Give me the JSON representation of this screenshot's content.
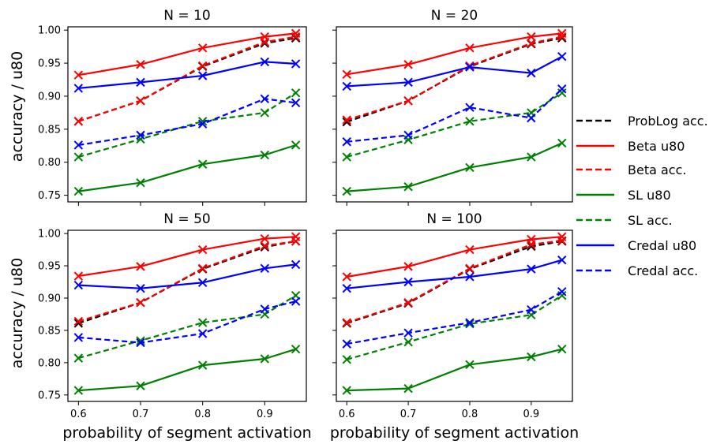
{
  "figure": {
    "ylabel": "accuracy / u80",
    "xlabel": "probability of segment activation"
  },
  "legend": [
    {
      "name": "ProbLog acc.",
      "color": "#000000",
      "dash": true
    },
    {
      "name": "Beta u80",
      "color": "#ff0000",
      "dash": false
    },
    {
      "name": "Beta acc.",
      "color": "#ff0000",
      "dash": true
    },
    {
      "name": "SL u80",
      "color": "#008000",
      "dash": false
    },
    {
      "name": "SL acc.",
      "color": "#008000",
      "dash": true
    },
    {
      "name": "Credal u80",
      "color": "#0000ff",
      "dash": false
    },
    {
      "name": "Credal acc.",
      "color": "#0000ff",
      "dash": true
    }
  ],
  "chart_data": [
    {
      "type": "line",
      "title": "N = 10",
      "x": [
        0.6,
        0.7,
        0.8,
        0.9,
        0.95
      ],
      "xticks": [
        "0.6",
        "0.7",
        "0.8",
        "0.9"
      ],
      "yticks": [
        "0.75",
        "0.80",
        "0.85",
        "0.90",
        "0.95",
        "1.00"
      ],
      "ylim": [
        0.74,
        1.005
      ],
      "series": [
        {
          "name": "ProbLog acc.",
          "values": [
            0.862,
            0.893,
            0.945,
            0.98,
            0.988
          ]
        },
        {
          "name": "Beta acc.",
          "values": [
            0.862,
            0.893,
            0.946,
            0.982,
            0.99
          ]
        },
        {
          "name": "Beta u80",
          "values": [
            0.932,
            0.948,
            0.973,
            0.99,
            0.995
          ]
        },
        {
          "name": "SL acc.",
          "values": [
            0.808,
            0.835,
            0.862,
            0.875,
            0.905
          ]
        },
        {
          "name": "SL u80",
          "values": [
            0.756,
            0.769,
            0.797,
            0.811,
            0.826
          ]
        },
        {
          "name": "Credal acc.",
          "values": [
            0.826,
            0.841,
            0.858,
            0.896,
            0.89
          ]
        },
        {
          "name": "Credal u80",
          "values": [
            0.912,
            0.921,
            0.931,
            0.952,
            0.949
          ]
        }
      ]
    },
    {
      "type": "line",
      "title": "N = 20",
      "x": [
        0.6,
        0.7,
        0.8,
        0.9,
        0.95
      ],
      "xticks": [
        "0.6",
        "0.7",
        "0.8",
        "0.9"
      ],
      "yticks": [
        "0.75",
        "0.80",
        "0.85",
        "0.90",
        "0.95",
        "1.00"
      ],
      "ylim": [
        0.74,
        1.005
      ],
      "series": [
        {
          "name": "ProbLog acc.",
          "values": [
            0.861,
            0.893,
            0.945,
            0.979,
            0.988
          ]
        },
        {
          "name": "Beta acc.",
          "values": [
            0.864,
            0.893,
            0.946,
            0.98,
            0.99
          ]
        },
        {
          "name": "Beta u80",
          "values": [
            0.933,
            0.948,
            0.973,
            0.99,
            0.995
          ]
        },
        {
          "name": "SL acc.",
          "values": [
            0.808,
            0.834,
            0.862,
            0.875,
            0.905
          ]
        },
        {
          "name": "SL u80",
          "values": [
            0.756,
            0.763,
            0.792,
            0.808,
            0.829
          ]
        },
        {
          "name": "Credal acc.",
          "values": [
            0.831,
            0.841,
            0.883,
            0.867,
            0.911
          ]
        },
        {
          "name": "Credal u80",
          "values": [
            0.915,
            0.921,
            0.944,
            0.935,
            0.96
          ]
        }
      ]
    },
    {
      "type": "line",
      "title": "N = 50",
      "x": [
        0.6,
        0.7,
        0.8,
        0.9,
        0.95
      ],
      "xticks": [
        "0.6",
        "0.7",
        "0.8",
        "0.9"
      ],
      "yticks": [
        "0.75",
        "0.80",
        "0.85",
        "0.90",
        "0.95",
        "1.00"
      ],
      "ylim": [
        0.74,
        1.005
      ],
      "xlabel": "probability of segment activation",
      "series": [
        {
          "name": "ProbLog acc.",
          "values": [
            0.861,
            0.893,
            0.945,
            0.979,
            0.988
          ]
        },
        {
          "name": "Beta acc.",
          "values": [
            0.864,
            0.893,
            0.946,
            0.981,
            0.988
          ]
        },
        {
          "name": "Beta u80",
          "values": [
            0.934,
            0.949,
            0.975,
            0.992,
            0.995
          ]
        },
        {
          "name": "SL acc.",
          "values": [
            0.807,
            0.834,
            0.862,
            0.875,
            0.904
          ]
        },
        {
          "name": "SL u80",
          "values": [
            0.757,
            0.764,
            0.796,
            0.806,
            0.821
          ]
        },
        {
          "name": "Credal acc.",
          "values": [
            0.839,
            0.831,
            0.845,
            0.883,
            0.895
          ]
        },
        {
          "name": "Credal u80",
          "values": [
            0.92,
            0.915,
            0.924,
            0.946,
            0.952
          ]
        }
      ]
    },
    {
      "type": "line",
      "title": "N = 100",
      "x": [
        0.6,
        0.7,
        0.8,
        0.9,
        0.95
      ],
      "xticks": [
        "0.6",
        "0.7",
        "0.8",
        "0.9"
      ],
      "yticks": [
        "0.75",
        "0.80",
        "0.85",
        "0.90",
        "0.95",
        "1.00"
      ],
      "ylim": [
        0.74,
        1.005
      ],
      "xlabel": "probability of segment activation",
      "series": [
        {
          "name": "ProbLog acc.",
          "values": [
            0.861,
            0.892,
            0.945,
            0.98,
            0.988
          ]
        },
        {
          "name": "Beta acc.",
          "values": [
            0.862,
            0.893,
            0.946,
            0.983,
            0.989
          ]
        },
        {
          "name": "Beta u80",
          "values": [
            0.933,
            0.949,
            0.975,
            0.991,
            0.995
          ]
        },
        {
          "name": "SL acc.",
          "values": [
            0.805,
            0.832,
            0.86,
            0.874,
            0.904
          ]
        },
        {
          "name": "SL u80",
          "values": [
            0.757,
            0.76,
            0.797,
            0.809,
            0.821
          ]
        },
        {
          "name": "Credal acc.",
          "values": [
            0.829,
            0.846,
            0.862,
            0.882,
            0.91
          ]
        },
        {
          "name": "Credal u80",
          "values": [
            0.915,
            0.925,
            0.933,
            0.945,
            0.959
          ]
        }
      ]
    }
  ]
}
